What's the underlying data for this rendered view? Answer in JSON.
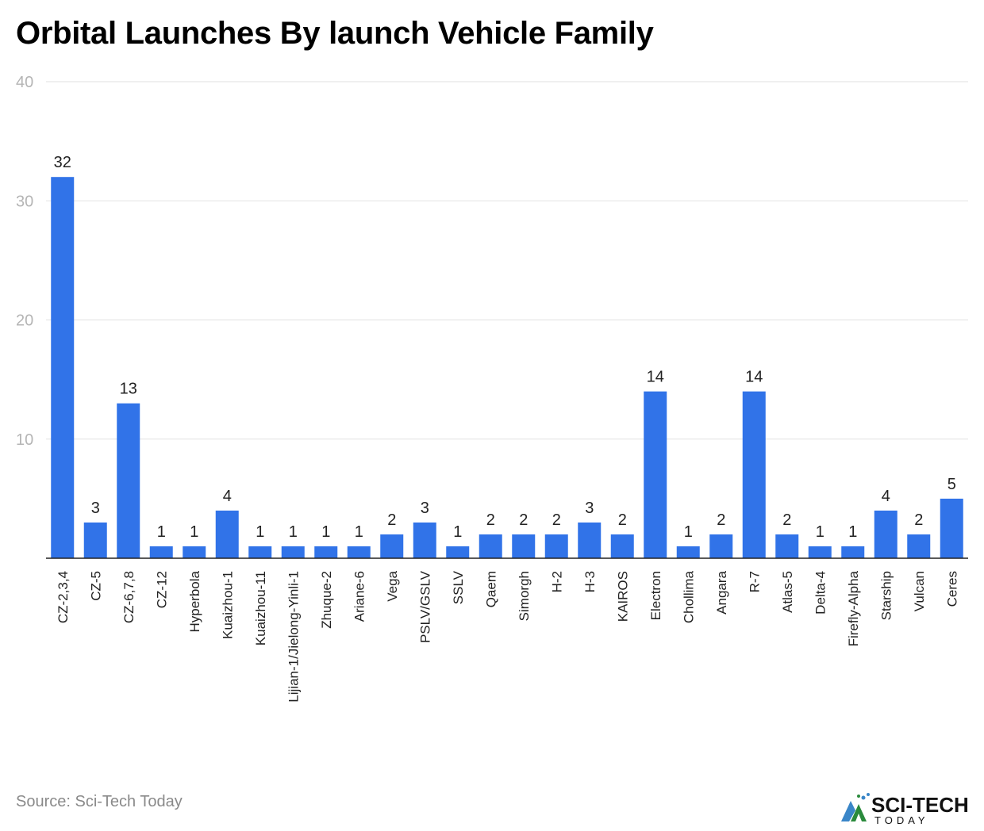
{
  "chart_data": {
    "type": "bar",
    "title": "Orbital Launches By launch Vehicle Family",
    "xlabel": "",
    "ylabel": "",
    "ylim": [
      0,
      40
    ],
    "yticks": [
      10,
      20,
      30,
      40
    ],
    "grid": true,
    "color": "#3173e8",
    "categories": [
      "CZ-2,3,4",
      "CZ-5",
      "CZ-6,7,8",
      "CZ-12",
      "Hyperbola",
      "Kuaizhou-1",
      "Kuaizhou-11",
      "Lijian-1/Jielong-Yinli-1",
      "Zhuque-2",
      "Ariane-6",
      "Vega",
      "PSLV/GSLV",
      "SSLV",
      "Qaem",
      "Simorgh",
      "H-2",
      "H-3",
      "KAIROS",
      "Electron",
      "Chollima",
      "Angara",
      "R-7",
      "Atlas-5",
      "Delta-4",
      "Firefly-Alpha",
      "Starship",
      "Vulcan",
      "Ceres"
    ],
    "values": [
      32,
      3,
      13,
      1,
      1,
      4,
      1,
      1,
      1,
      1,
      2,
      3,
      1,
      2,
      2,
      2,
      3,
      2,
      14,
      1,
      2,
      14,
      2,
      1,
      1,
      4,
      2,
      5
    ]
  },
  "source": "Source: Sci-Tech Today",
  "logo": {
    "text": "SCI-TECH",
    "subtext": "TODAY"
  }
}
